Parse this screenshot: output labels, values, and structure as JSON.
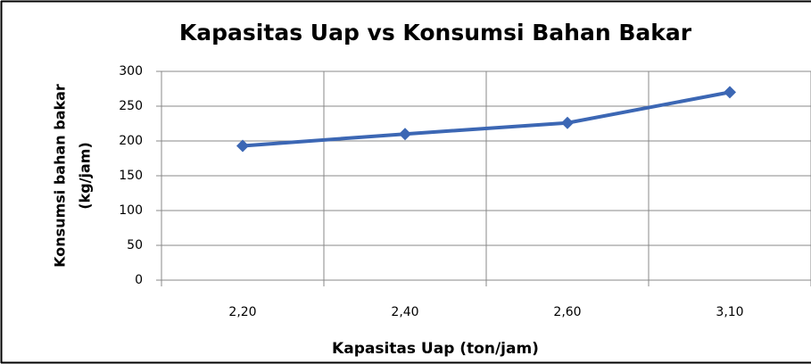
{
  "chart_data": {
    "type": "line",
    "title": "Kapasitas Uap vs Konsumsi Bahan Bakar",
    "xlabel": "Kapasitas Uap (ton/jam)",
    "ylabel": [
      "Konsumsi bahan bakar",
      "(kg/jam)"
    ],
    "categories": [
      "2,20",
      "2,40",
      "2,60",
      "3,10"
    ],
    "series": [
      {
        "name": "Konsumsi bahan bakar",
        "color": "#3c67b4",
        "values": [
          193,
          210,
          226,
          270
        ]
      }
    ],
    "ylim": [
      0,
      300
    ],
    "yticks": [
      0,
      50,
      100,
      150,
      200,
      250,
      300
    ],
    "grid": true
  }
}
